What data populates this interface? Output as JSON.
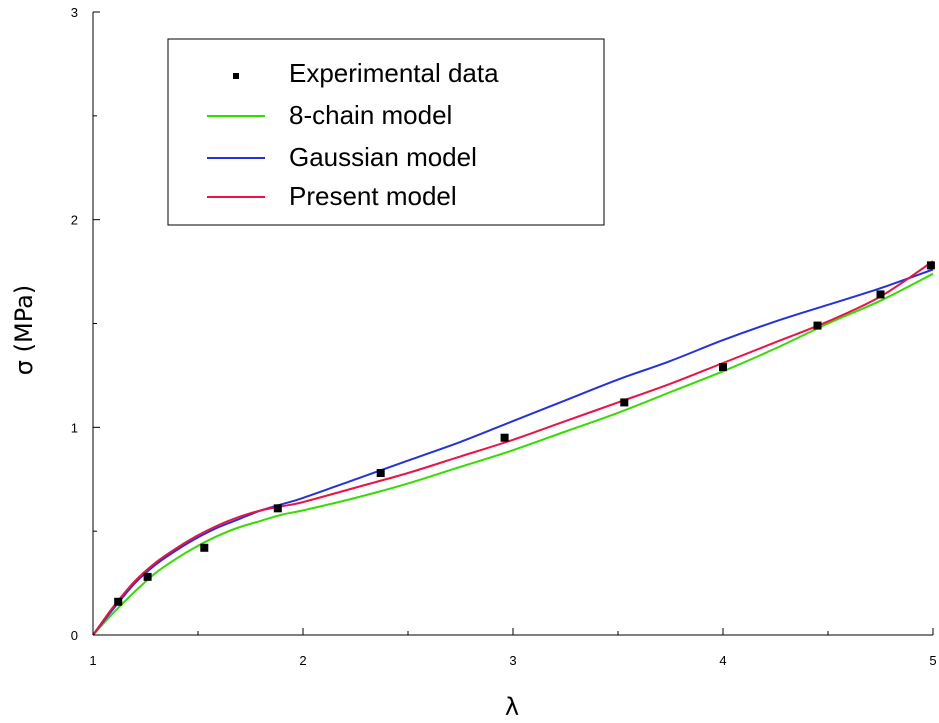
{
  "chart_data": {
    "type": "line",
    "xlabel": "λ",
    "ylabel": "σ (MPa)",
    "xlim": [
      1,
      5
    ],
    "ylim": [
      0,
      3
    ],
    "x_ticks": [
      "1",
      "2",
      "3",
      "4",
      "5"
    ],
    "y_ticks": [
      "0",
      "1",
      "2",
      "3"
    ],
    "legend_position": "top-left",
    "grid": false,
    "experimental": {
      "name": "Experimental data",
      "color": "#000000",
      "x": [
        1.12,
        1.26,
        1.53,
        1.88,
        2.37,
        2.96,
        3.53,
        4.0,
        4.45,
        4.75,
        4.99
      ],
      "y": [
        0.16,
        0.28,
        0.42,
        0.61,
        0.78,
        0.95,
        1.12,
        1.29,
        1.49,
        1.64,
        1.78
      ]
    },
    "series": [
      {
        "name": "8-chain model",
        "color": "#33dd00",
        "x": [
          1.0,
          1.1,
          1.2,
          1.3,
          1.4,
          1.5,
          1.6,
          1.7,
          1.8,
          1.9,
          2.0,
          2.25,
          2.5,
          2.75,
          3.0,
          3.25,
          3.5,
          3.75,
          4.0,
          4.25,
          4.5,
          4.75,
          5.0
        ],
        "y": [
          0.0,
          0.11,
          0.21,
          0.3,
          0.37,
          0.43,
          0.48,
          0.52,
          0.55,
          0.58,
          0.6,
          0.66,
          0.73,
          0.81,
          0.89,
          0.98,
          1.07,
          1.17,
          1.27,
          1.38,
          1.5,
          1.61,
          1.74
        ]
      },
      {
        "name": "Gaussian model",
        "color": "#2233dd",
        "x": [
          1.0,
          1.1,
          1.2,
          1.3,
          1.4,
          1.5,
          1.6,
          1.7,
          1.8,
          1.9,
          2.0,
          2.25,
          2.5,
          2.75,
          3.0,
          3.25,
          3.5,
          3.75,
          4.0,
          4.25,
          4.5,
          4.75,
          5.0
        ],
        "y": [
          0.0,
          0.13,
          0.25,
          0.34,
          0.41,
          0.47,
          0.52,
          0.56,
          0.6,
          0.63,
          0.66,
          0.75,
          0.84,
          0.93,
          1.03,
          1.13,
          1.23,
          1.32,
          1.42,
          1.51,
          1.59,
          1.67,
          1.76
        ]
      },
      {
        "name": "Present model",
        "color": "#ee1144",
        "x": [
          1.0,
          1.1,
          1.2,
          1.3,
          1.4,
          1.5,
          1.6,
          1.7,
          1.8,
          1.9,
          2.0,
          2.25,
          2.5,
          2.75,
          3.0,
          3.25,
          3.5,
          3.75,
          4.0,
          4.25,
          4.5,
          4.75,
          5.0
        ],
        "y": [
          0.0,
          0.14,
          0.26,
          0.35,
          0.42,
          0.48,
          0.53,
          0.57,
          0.6,
          0.62,
          0.64,
          0.71,
          0.78,
          0.86,
          0.94,
          1.03,
          1.12,
          1.21,
          1.31,
          1.41,
          1.51,
          1.63,
          1.8
        ]
      }
    ]
  }
}
